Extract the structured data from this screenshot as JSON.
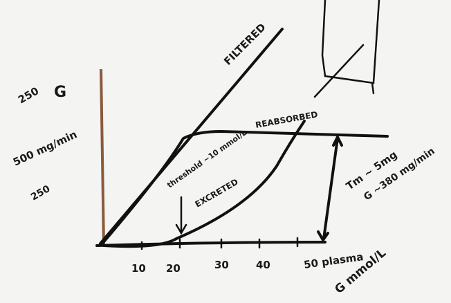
{
  "y_labels": [
    "250",
    "G",
    "500 mg/min",
    "250"
  ],
  "x_ticks": [
    "10",
    "20",
    "30",
    "40",
    "50 plasma"
  ],
  "x_title": "G mmol/L",
  "curves": {
    "filtered": "FILTERED",
    "reabsorbed": "REABSORBED",
    "threshold": "threshold ~10 mmol/L",
    "excreted": "EXCRETED",
    "tm": "Tm ~ 5mg",
    "tm_value": "G ~380 mg/min"
  }
}
